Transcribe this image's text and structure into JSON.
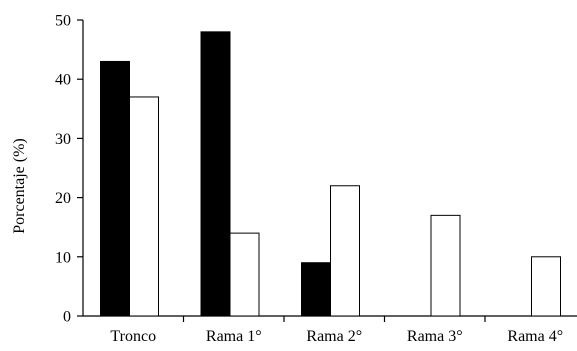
{
  "chart_data": {
    "type": "bar",
    "title": "",
    "xlabel": "",
    "ylabel": "Porcentaje  (%)",
    "ylim": [
      0,
      50
    ],
    "yticks": [
      0,
      10,
      20,
      30,
      40,
      50
    ],
    "categories": [
      "Tronco",
      "Rama 1°",
      "Rama 2°",
      "Rama 3°",
      "Rama 4°"
    ],
    "grid": false,
    "legend": "none",
    "series": [
      {
        "values": [
          43,
          48,
          9,
          0,
          0
        ],
        "color": "#000000"
      },
      {
        "values": [
          37,
          14,
          22,
          17,
          10
        ],
        "color": "#ffffff"
      }
    ]
  }
}
